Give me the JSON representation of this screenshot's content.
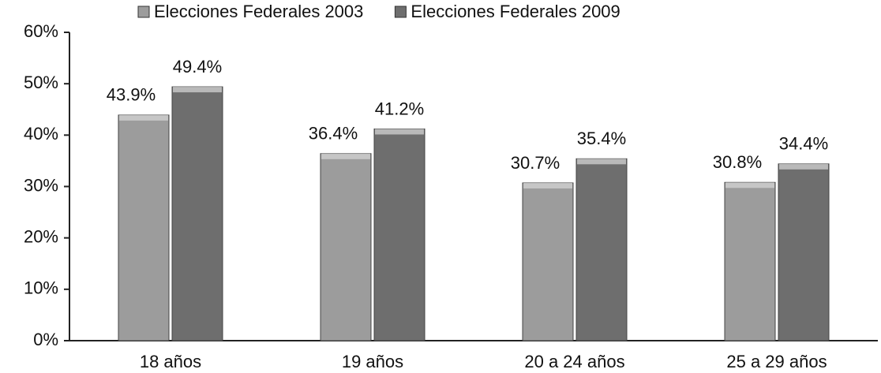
{
  "chart_data": {
    "type": "bar",
    "categories": [
      "18 años",
      "19 años",
      "20 a 24 años",
      "25 a 29 años"
    ],
    "series": [
      {
        "name": "Elecciones Federales 2003",
        "color": "#9c9c9c",
        "values": [
          43.9,
          36.4,
          30.7,
          30.8
        ],
        "value_labels": [
          "43.9%",
          "36.4%",
          "30.7%",
          "30.8%"
        ]
      },
      {
        "name": "Elecciones Federales 2009",
        "color": "#6e6e6e",
        "values": [
          49.4,
          41.2,
          35.4,
          34.4
        ],
        "value_labels": [
          "49.4%",
          "41.2%",
          "35.4%",
          "34.4%"
        ]
      }
    ],
    "ylim": [
      0,
      60
    ],
    "yticks": [
      {
        "value": 0,
        "label": "0%"
      },
      {
        "value": 10,
        "label": "10%"
      },
      {
        "value": 20,
        "label": "20%"
      },
      {
        "value": 30,
        "label": "30%"
      },
      {
        "value": 40,
        "label": "40%"
      },
      {
        "value": 50,
        "label": "50%"
      },
      {
        "value": 60,
        "label": "60%"
      }
    ],
    "legend": "top",
    "grid": false
  }
}
